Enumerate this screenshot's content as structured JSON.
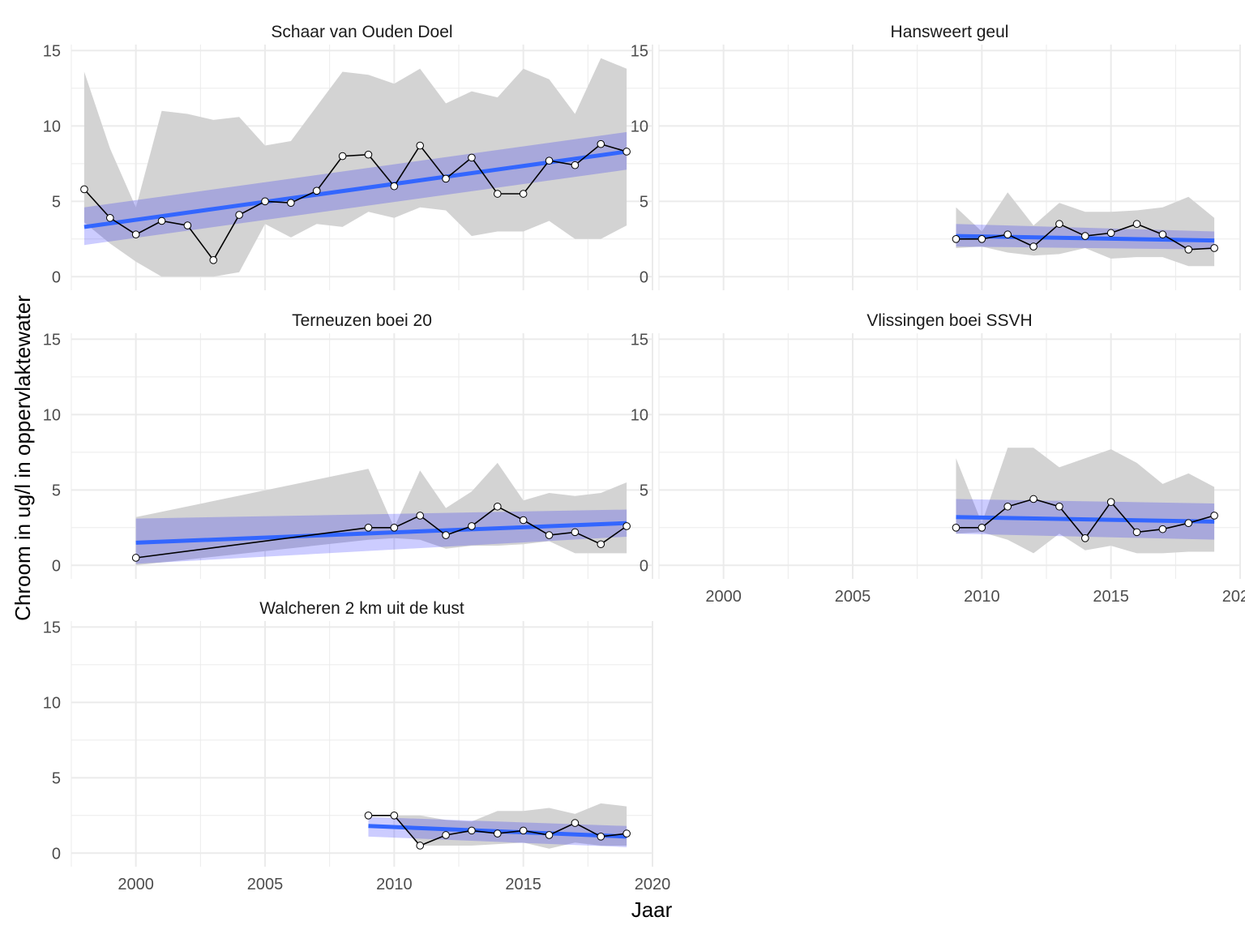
{
  "chart_data": {
    "type": "line",
    "xlabel": "Jaar",
    "ylabel": "Chroom in ug/l in oppervlaktewater",
    "xlim": [
      1997.5,
      2020
    ],
    "ylim": [
      -0.9,
      15.4
    ],
    "x_ticks": [
      2000,
      2005,
      2010,
      2015,
      2020
    ],
    "x_tick_labels": [
      "2000",
      "2005",
      "2010",
      "2015",
      "2020"
    ],
    "y_ticks": [
      0,
      5,
      10,
      15
    ],
    "y_tick_labels": [
      "0",
      "5",
      "10",
      "15"
    ],
    "grid": true,
    "colors": {
      "line": "#000000",
      "point_fill": "#ffffff",
      "trend": "#3366ff",
      "trend_ci": "#0000ff",
      "range_band": "#d3d3d3",
      "grid": "#ebebeb"
    },
    "panels": [
      {
        "title": "Schaar van Ouden Doel",
        "x": [
          1998,
          1999,
          2000,
          2001,
          2002,
          2003,
          2004,
          2005,
          2006,
          2007,
          2008,
          2009,
          2010,
          2011,
          2012,
          2013,
          2014,
          2015,
          2016,
          2017,
          2018,
          2019
        ],
        "y": [
          5.8,
          3.9,
          2.8,
          3.7,
          3.4,
          1.1,
          4.1,
          5.0,
          4.9,
          5.7,
          8.0,
          8.1,
          6.0,
          8.7,
          6.5,
          7.9,
          5.5,
          5.5,
          7.7,
          7.4,
          8.8,
          8.3
        ],
        "band_upper": [
          13.6,
          8.5,
          4.6,
          11.0,
          10.8,
          10.4,
          10.6,
          8.7,
          9.0,
          11.3,
          13.6,
          13.4,
          12.8,
          13.8,
          11.5,
          12.3,
          11.9,
          13.8,
          13.1,
          10.8,
          14.5,
          13.8
        ],
        "band_lower": [
          3.6,
          2.2,
          1.0,
          0.0,
          0.0,
          0.0,
          0.3,
          3.5,
          2.6,
          3.5,
          3.3,
          4.3,
          3.9,
          4.6,
          4.4,
          2.7,
          3.0,
          3.0,
          3.7,
          2.5,
          2.5,
          3.4
        ],
        "trend": {
          "x": [
            1998,
            2019
          ],
          "y": [
            3.3,
            8.3
          ],
          "ci_upper": [
            4.6,
            9.6
          ],
          "ci_lower": [
            2.1,
            7.1
          ]
        }
      },
      {
        "title": "Hansweert geul",
        "x": [
          2009,
          2010,
          2011,
          2012,
          2013,
          2014,
          2015,
          2016,
          2017,
          2018,
          2019
        ],
        "y": [
          2.5,
          2.5,
          2.8,
          2.0,
          3.5,
          2.7,
          2.9,
          3.5,
          2.8,
          1.8,
          1.9
        ],
        "band_upper": [
          4.6,
          3.0,
          5.6,
          3.4,
          4.9,
          4.3,
          4.3,
          4.4,
          4.6,
          5.3,
          3.9
        ],
        "band_lower": [
          1.9,
          2.0,
          1.6,
          1.4,
          1.5,
          1.9,
          1.2,
          1.3,
          1.3,
          0.7,
          0.7
        ],
        "trend": {
          "x": [
            2009,
            2019
          ],
          "y": [
            2.7,
            2.4
          ],
          "ci_upper": [
            3.5,
            3.0
          ],
          "ci_lower": [
            2.0,
            1.8
          ]
        }
      },
      {
        "title": "Terneuzen boei 20",
        "x": [
          2000,
          2009,
          2010,
          2011,
          2012,
          2013,
          2014,
          2015,
          2016,
          2017,
          2018,
          2019
        ],
        "y": [
          0.5,
          2.5,
          2.5,
          3.3,
          2.0,
          2.6,
          3.9,
          3.0,
          2.0,
          2.2,
          1.4,
          2.6
        ],
        "band_upper": [
          3.2,
          6.4,
          2.5,
          6.3,
          3.8,
          4.9,
          6.8,
          4.3,
          4.8,
          4.6,
          4.8,
          5.5
        ],
        "band_lower": [
          0.0,
          1.7,
          1.8,
          1.7,
          1.1,
          1.3,
          1.3,
          1.4,
          1.6,
          0.8,
          0.8,
          0.8
        ],
        "trend": {
          "x": [
            2000,
            2019
          ],
          "y": [
            1.5,
            2.8
          ],
          "ci_upper": [
            3.1,
            3.7
          ],
          "ci_lower": [
            0.1,
            1.9
          ]
        }
      },
      {
        "title": "Vlissingen boei SSVH",
        "x": [
          2009,
          2010,
          2011,
          2012,
          2013,
          2014,
          2015,
          2016,
          2017,
          2018,
          2019
        ],
        "y": [
          2.5,
          2.5,
          3.9,
          4.4,
          3.9,
          1.8,
          4.2,
          2.2,
          2.4,
          2.8,
          3.3
        ],
        "band_upper": [
          7.1,
          2.8,
          7.8,
          7.8,
          6.5,
          7.1,
          7.7,
          6.8,
          5.4,
          6.1,
          5.2
        ],
        "band_lower": [
          2.1,
          2.2,
          1.7,
          0.8,
          2.1,
          1.0,
          1.3,
          0.8,
          0.8,
          0.9,
          0.9
        ],
        "trend": {
          "x": [
            2009,
            2019
          ],
          "y": [
            3.2,
            2.9
          ],
          "ci_upper": [
            4.4,
            4.1
          ],
          "ci_lower": [
            2.1,
            1.7
          ]
        }
      },
      {
        "title": "Walcheren 2 km uit de kust",
        "x": [
          2009,
          2010,
          2011,
          2012,
          2013,
          2014,
          2015,
          2016,
          2017,
          2018,
          2019
        ],
        "y": [
          2.5,
          2.5,
          0.5,
          1.2,
          1.5,
          1.3,
          1.5,
          1.2,
          2.0,
          1.1,
          1.3
        ],
        "band_upper": [
          2.5,
          2.5,
          2.5,
          2.2,
          2.1,
          2.8,
          2.8,
          3.0,
          2.6,
          3.3,
          3.1
        ],
        "band_lower": [
          2.5,
          2.5,
          0.5,
          0.5,
          0.5,
          0.6,
          0.7,
          0.3,
          0.7,
          0.5,
          0.5
        ],
        "trend": {
          "x": [
            2009,
            2019
          ],
          "y": [
            1.8,
            1.1
          ],
          "ci_upper": [
            2.4,
            1.8
          ],
          "ci_lower": [
            1.1,
            0.4
          ]
        }
      }
    ]
  }
}
